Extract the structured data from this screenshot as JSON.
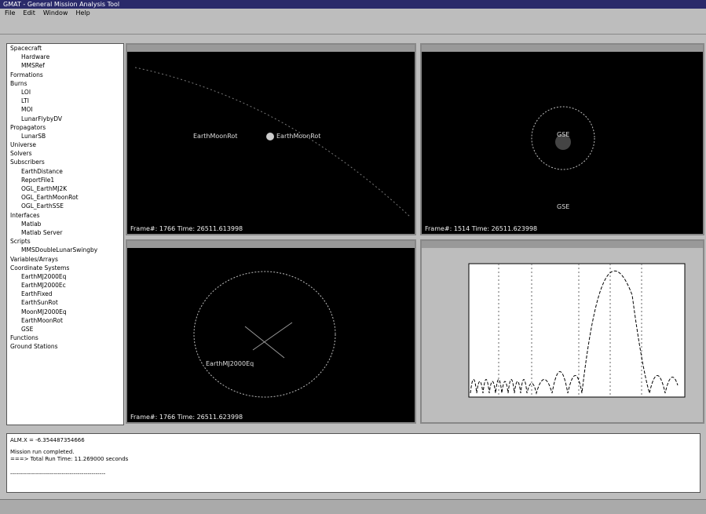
{
  "window": {
    "title": "GMAT - General Mission Analysis Tool"
  },
  "menu": [
    "File",
    "Edit",
    "Window",
    "Help"
  ],
  "tree": {
    "nodes": [
      {
        "label": "Spacecraft",
        "children": [
          {
            "label": "Hardware"
          },
          {
            "label": "MMSRef"
          }
        ]
      },
      {
        "label": "Formations"
      },
      {
        "label": "Burns",
        "children": [
          {
            "label": "LOI"
          },
          {
            "label": "LTI"
          },
          {
            "label": "MOI"
          },
          {
            "label": "LunarFlybyDV"
          }
        ]
      },
      {
        "label": "Propagators",
        "children": [
          {
            "label": "LunarSB"
          }
        ]
      },
      {
        "label": "Universe"
      },
      {
        "label": "Solvers"
      },
      {
        "label": "Subscribers",
        "children": [
          {
            "label": "EarthDistance"
          },
          {
            "label": "ReportFile1"
          },
          {
            "label": "OGL_EarthMJ2K"
          },
          {
            "label": "OGL_EarthMoonRot"
          },
          {
            "label": "OGL_EarthSSE"
          }
        ]
      },
      {
        "label": "Interfaces",
        "children": [
          {
            "label": "Matlab"
          },
          {
            "label": "Matlab Server"
          }
        ]
      },
      {
        "label": "Scripts",
        "children": [
          {
            "label": "MMSDoubleLunarSwingby"
          }
        ]
      },
      {
        "label": "Variables/Arrays"
      },
      {
        "label": "Coordinate Systems",
        "children": [
          {
            "label": "EarthMJ2000Eq"
          },
          {
            "label": "EarthMJ2000Ec"
          },
          {
            "label": "EarthFixed"
          },
          {
            "label": "EarthSunRot"
          },
          {
            "label": "MoonMJ2000Eq"
          },
          {
            "label": "EarthMoonRot"
          },
          {
            "label": "GSE"
          }
        ]
      },
      {
        "label": "Functions"
      },
      {
        "label": "Ground Stations"
      }
    ]
  },
  "panels": [
    {
      "labels": [
        "EarthMoonRot",
        "EarthMoonRot"
      ],
      "status": "Frame#: 1766  Time: 26511.613998"
    },
    {
      "labels": [
        "GSE",
        "GSE"
      ],
      "status": "Frame#: 1514  Time: 26511.623998"
    },
    {
      "labels": [
        "EarthMJ2000Eq"
      ],
      "status": "Frame#: 1766  Time: 26511.623998"
    }
  ],
  "console": {
    "lines": [
      "ALM.X = -6.354487354666",
      "Mission run completed.",
      "===> Total Run Time: 11.269000 seconds",
      "------------------------------------------------"
    ]
  }
}
